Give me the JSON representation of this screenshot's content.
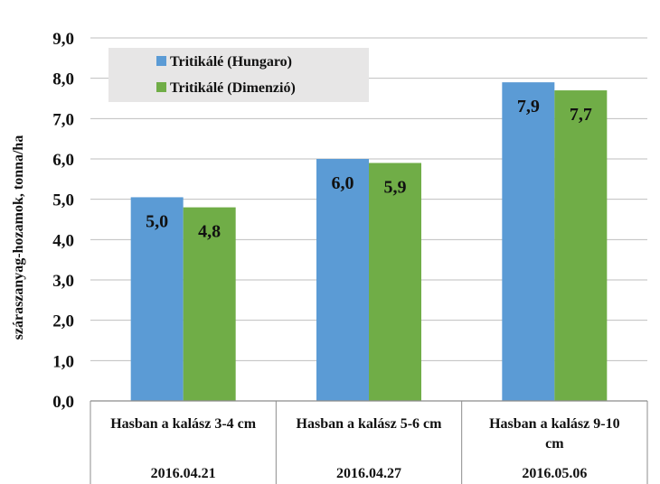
{
  "chart_data": {
    "type": "bar",
    "ylabel": "száraszanyag-hozamok, tonna/ha",
    "ylim": [
      0,
      9
    ],
    "ytick_step": 1,
    "yticks": [
      "0,0",
      "1,0",
      "2,0",
      "3,0",
      "4,0",
      "5,0",
      "6,0",
      "7,0",
      "8,0",
      "9,0"
    ],
    "categories": [
      {
        "lines": [
          "Hasban a kalász  3-4 cm"
        ],
        "date": "2016.04.21"
      },
      {
        "lines": [
          "Hasban a kalász 5-6 cm"
        ],
        "date": "2016.04.27"
      },
      {
        "lines": [
          "Hasban a kalász 9-10",
          "cm"
        ],
        "date": "2016.05.06"
      }
    ],
    "series": [
      {
        "name": "Tritikálé (Hungaro)",
        "color": "#5b9bd5",
        "values": [
          5.05,
          6.0,
          7.9
        ],
        "labels": [
          "5,0",
          "6,0",
          "7,9"
        ]
      },
      {
        "name": "Tritikálé (Dimenzió)",
        "color": "#70ad47",
        "values": [
          4.8,
          5.9,
          7.7
        ],
        "labels": [
          "4,8",
          "5,9",
          "7,7"
        ]
      }
    ],
    "gridlines": true,
    "legend_position": "top-left",
    "legend_background": "#e7e6e6"
  }
}
